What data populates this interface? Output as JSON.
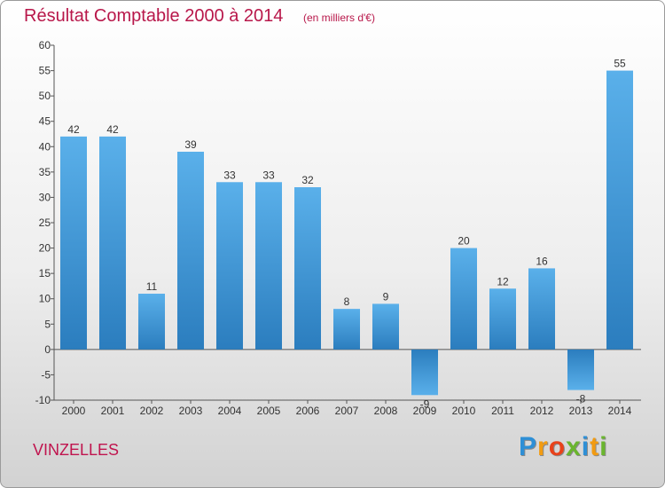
{
  "header": {
    "title": "Résultat Comptable 2000 à 2014",
    "subtitle": "(en milliers d'€)"
  },
  "footer": {
    "commune": "VINZELLES",
    "brand_letters": [
      "P",
      "r",
      "o",
      "x",
      "i",
      "t",
      "i"
    ],
    "brand_colors": [
      "#2e8fd6",
      "#f29b11",
      "#e8421b",
      "#6ab52e",
      "#2e8fd6",
      "#f29b11",
      "#6ab52e"
    ]
  },
  "chart_data": {
    "type": "bar",
    "title": "Résultat Comptable 2000 à 2014",
    "subtitle": "(en milliers d'€)",
    "xlabel": "",
    "ylabel": "",
    "categories": [
      "2000",
      "2001",
      "2002",
      "2003",
      "2004",
      "2005",
      "2006",
      "2007",
      "2008",
      "2009",
      "2010",
      "2011",
      "2012",
      "2013",
      "2014"
    ],
    "values": [
      42,
      42,
      11,
      39,
      33,
      33,
      32,
      8,
      9,
      -9,
      20,
      12,
      16,
      -8,
      55
    ],
    "ylim": [
      -10,
      60
    ],
    "yticks": [
      -10,
      -5,
      0,
      5,
      10,
      15,
      20,
      25,
      30,
      35,
      40,
      45,
      50,
      55,
      60
    ],
    "grid": false,
    "bar_color_light": "#5ab0ea",
    "bar_color_dark": "#2b7dbe",
    "axis_color": "#555555"
  }
}
